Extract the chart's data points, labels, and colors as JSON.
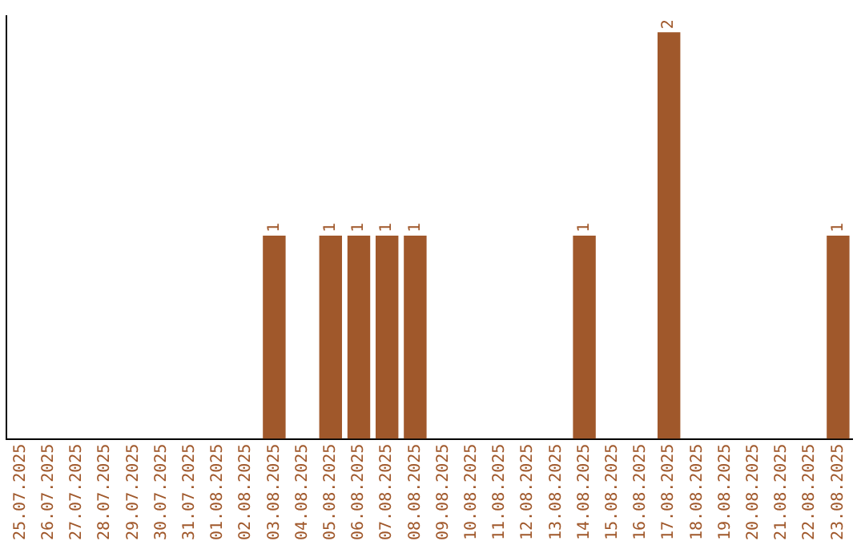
{
  "chart_data": {
    "type": "bar",
    "categories": [
      "25.07.2025",
      "26.07.2025",
      "27.07.2025",
      "28.07.2025",
      "29.07.2025",
      "30.07.2025",
      "31.07.2025",
      "01.08.2025",
      "02.08.2025",
      "03.08.2025",
      "04.08.2025",
      "05.08.2025",
      "06.08.2025",
      "07.08.2025",
      "08.08.2025",
      "09.08.2025",
      "10.08.2025",
      "11.08.2025",
      "12.08.2025",
      "13.08.2025",
      "14.08.2025",
      "15.08.2025",
      "16.08.2025",
      "17.08.2025",
      "18.08.2025",
      "19.08.2025",
      "20.08.2025",
      "21.08.2025",
      "22.08.2025",
      "23.08.2025"
    ],
    "values": [
      0,
      0,
      0,
      0,
      0,
      0,
      0,
      0,
      0,
      1,
      0,
      1,
      1,
      1,
      1,
      0,
      0,
      0,
      0,
      0,
      1,
      0,
      0,
      2,
      0,
      0,
      0,
      0,
      0,
      1
    ],
    "value_labels": [
      null,
      null,
      null,
      null,
      null,
      null,
      null,
      null,
      null,
      "1",
      null,
      "1",
      "1",
      "1",
      "1",
      null,
      null,
      null,
      null,
      null,
      "1",
      null,
      null,
      "2",
      null,
      null,
      null,
      null,
      null,
      "1"
    ],
    "color": "#a0582b",
    "ylim": [
      0,
      2.08
    ],
    "tick_labels": "x",
    "grid": false,
    "legend": false
  }
}
